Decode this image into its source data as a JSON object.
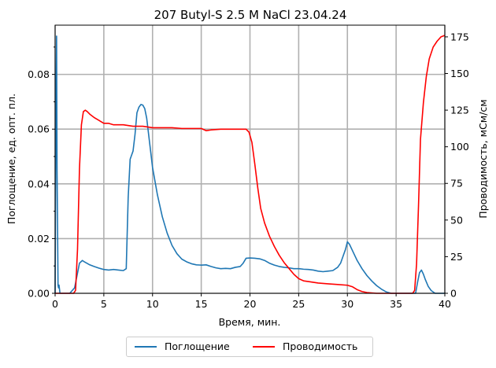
{
  "chart_data": {
    "type": "line",
    "title": "207 Butyl-S 2.5 M NaCl 23.04.24",
    "xlabel": "Время, мин.",
    "ylabel_left": "Поглощение, ед. опт. пл.",
    "ylabel_right": "Проводимость, мСм/см",
    "xlim": [
      0,
      40
    ],
    "ylim_left": [
      0,
      0.098
    ],
    "ylim_right": [
      0,
      183
    ],
    "xticks": [
      0,
      5,
      10,
      15,
      20,
      25,
      30,
      35,
      40
    ],
    "yticks_left": [
      0.0,
      0.02,
      0.04,
      0.06,
      0.08
    ],
    "yticks_left_labels": [
      "0.00",
      "0.02",
      "0.04",
      "0.06",
      "0.08"
    ],
    "yticks_right": [
      0,
      25,
      50,
      75,
      100,
      125,
      150,
      175
    ],
    "grid": true,
    "legend_position": "bottom-center",
    "series": [
      {
        "name": "Поглощение",
        "axis": "left",
        "color": "#1f77b4",
        "x": [
          0.0,
          0.1,
          0.15,
          0.2,
          0.25,
          0.3,
          0.35,
          0.4,
          0.5,
          0.6,
          0.8,
          1.0,
          1.5,
          2.0,
          2.5,
          2.8,
          3.0,
          3.5,
          4.0,
          4.5,
          5.0,
          5.5,
          6.0,
          6.5,
          7.0,
          7.3,
          7.5,
          7.7,
          8.0,
          8.2,
          8.4,
          8.6,
          8.8,
          9.0,
          9.2,
          9.4,
          9.6,
          9.8,
          10.0,
          10.5,
          11.0,
          11.5,
          12.0,
          12.5,
          13.0,
          13.5,
          14.0,
          14.5,
          15.0,
          15.5,
          16.0,
          16.5,
          17.0,
          17.5,
          18.0,
          18.5,
          19.0,
          19.3,
          19.6,
          20.0,
          20.5,
          21.0,
          21.5,
          22.0,
          22.5,
          23.0,
          23.5,
          24.0,
          24.5,
          25.0,
          25.5,
          26.0,
          26.5,
          27.0,
          27.5,
          28.0,
          28.5,
          29.0,
          29.3,
          29.6,
          29.8,
          30.0,
          30.2,
          30.4,
          30.6,
          30.8,
          31.0,
          31.5,
          32.0,
          32.5,
          33.0,
          33.5,
          34.0,
          34.5,
          35.0,
          35.5,
          36.0,
          36.5,
          37.0,
          37.2,
          37.4,
          37.6,
          37.8,
          38.0,
          38.3,
          38.6,
          39.0,
          39.5,
          40.0
        ],
        "values": [
          0.0,
          0.076,
          0.094,
          0.045,
          0.025,
          0.003,
          0.002,
          0.003,
          0.0,
          0.0,
          0.0,
          0.0,
          0.0,
          0.002,
          0.011,
          0.012,
          0.0115,
          0.0105,
          0.0098,
          0.0092,
          0.0087,
          0.0085,
          0.0087,
          0.0085,
          0.0083,
          0.009,
          0.035,
          0.049,
          0.052,
          0.058,
          0.066,
          0.068,
          0.069,
          0.0688,
          0.0675,
          0.064,
          0.058,
          0.052,
          0.046,
          0.036,
          0.028,
          0.022,
          0.0175,
          0.0145,
          0.0125,
          0.0115,
          0.0108,
          0.0104,
          0.0103,
          0.0104,
          0.0098,
          0.0093,
          0.009,
          0.0091,
          0.009,
          0.0095,
          0.0098,
          0.011,
          0.0128,
          0.0129,
          0.0128,
          0.0126,
          0.012,
          0.011,
          0.0103,
          0.0098,
          0.0095,
          0.0093,
          0.009,
          0.009,
          0.0088,
          0.0087,
          0.0085,
          0.0081,
          0.0079,
          0.0081,
          0.0083,
          0.0095,
          0.011,
          0.014,
          0.016,
          0.0188,
          0.018,
          0.0165,
          0.015,
          0.0135,
          0.012,
          0.009,
          0.0065,
          0.0045,
          0.0028,
          0.0015,
          0.0005,
          0.0,
          0.0,
          0.0,
          0.0,
          0.0,
          0.0,
          0.004,
          0.0075,
          0.0085,
          0.007,
          0.005,
          0.0025,
          0.001,
          0.0,
          0.0,
          0.0
        ]
      },
      {
        "name": "Проводимость",
        "axis": "right",
        "color": "#ff0000",
        "x": [
          0.0,
          1.9,
          2.1,
          2.3,
          2.5,
          2.7,
          2.9,
          3.1,
          3.3,
          3.6,
          4.0,
          4.5,
          5.0,
          5.5,
          6.0,
          7.0,
          8.0,
          9.0,
          10.0,
          11.0,
          12.0,
          13.0,
          14.0,
          15.0,
          15.5,
          16.0,
          17.0,
          18.0,
          19.0,
          19.6,
          19.9,
          20.2,
          20.5,
          20.8,
          21.1,
          21.5,
          22.0,
          22.5,
          23.0,
          23.5,
          24.0,
          24.5,
          25.0,
          25.5,
          26.0,
          27.0,
          28.0,
          29.0,
          30.0,
          30.5,
          31.0,
          31.5,
          32.0,
          33.0,
          34.0,
          35.0,
          36.0,
          36.5,
          36.7,
          36.9,
          37.1,
          37.3,
          37.5,
          37.8,
          38.1,
          38.4,
          38.8,
          39.2,
          39.6,
          40.0
        ],
        "values": [
          0,
          0,
          2,
          30,
          85,
          115,
          124,
          125,
          124,
          122,
          120,
          118,
          116,
          116,
          115,
          115,
          114,
          114,
          113,
          113,
          113,
          112.5,
          112.5,
          112.5,
          111,
          111.5,
          112,
          112,
          112,
          112,
          110,
          103,
          88,
          72,
          58,
          48,
          39,
          32,
          26,
          21,
          17,
          13,
          10,
          8.5,
          8,
          7,
          6.5,
          6,
          5.5,
          4.5,
          2.5,
          1.2,
          0.5,
          0,
          0,
          0,
          0,
          0,
          0,
          2,
          20,
          60,
          105,
          130,
          148,
          160,
          168,
          172,
          175,
          176
        ]
      }
    ]
  }
}
